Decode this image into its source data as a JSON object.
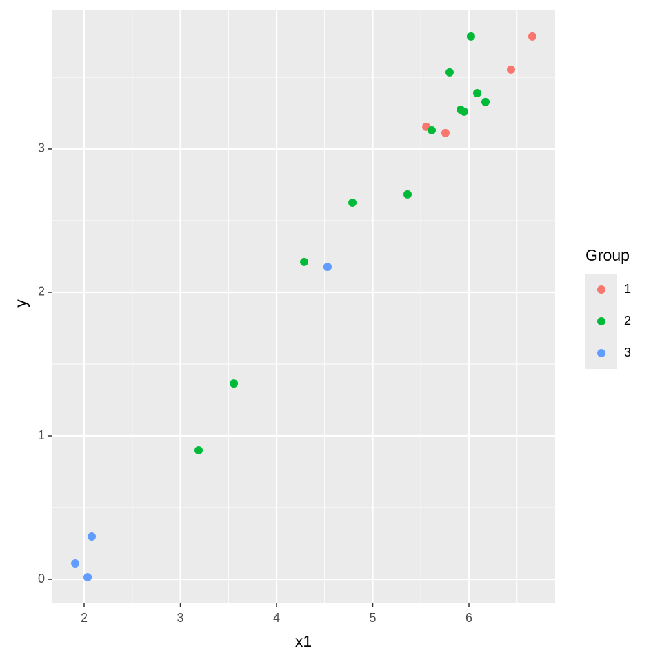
{
  "chart_data": {
    "type": "scatter",
    "x_label": "x1",
    "y_label": "y",
    "legend_title": "Group",
    "xlim": [
      1.663,
      6.896
    ],
    "ylim": [
      -0.168,
      3.966
    ],
    "xticks": [
      2,
      3,
      4,
      5,
      6
    ],
    "yticks": [
      0,
      1,
      2,
      3
    ],
    "x_minor_grid": [
      2.5,
      3.5,
      4.5,
      5.5,
      6.5
    ],
    "y_minor_grid": [
      0.5,
      1.5,
      2.5,
      3.5
    ],
    "grid": true,
    "legend": "right",
    "series": [
      {
        "name": "1",
        "color": "#F8766D",
        "x": [
          5.556,
          5.756,
          6.437,
          6.659
        ],
        "y": [
          3.154,
          3.111,
          3.553,
          3.784
        ]
      },
      {
        "name": "2",
        "color": "#00BA38",
        "x": [
          6.021,
          5.799,
          6.086,
          6.172,
          5.914,
          5.95,
          5.613,
          5.362,
          4.789,
          4.287,
          3.556,
          3.19
        ],
        "y": [
          3.784,
          3.534,
          3.389,
          3.327,
          3.274,
          3.26,
          3.13,
          2.683,
          2.625,
          2.212,
          1.365,
          0.899
        ]
      },
      {
        "name": "3",
        "color": "#619CFF",
        "x": [
          4.53,
          2.079,
          1.907,
          2.036
        ],
        "y": [
          2.178,
          0.298,
          0.111,
          0.014
        ]
      }
    ]
  }
}
